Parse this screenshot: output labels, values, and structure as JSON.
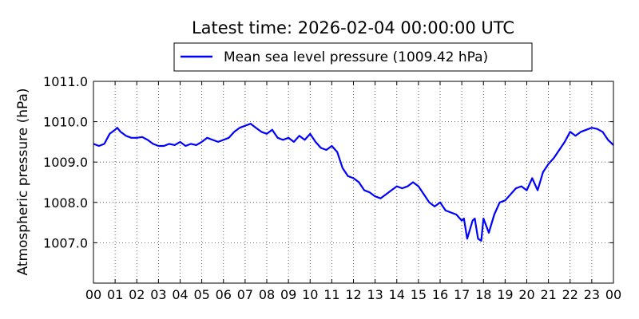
{
  "chart_data": {
    "type": "line",
    "title": "Latest time: 2026-02-04 00:00:00 UTC",
    "xlabel": "",
    "ylabel": "Atmospheric pressure (hPa)",
    "xlim": [
      0,
      24
    ],
    "ylim": [
      1006.0,
      1011.0
    ],
    "grid": true,
    "legend_position": "top-center",
    "x_tick_labels": [
      "00",
      "01",
      "02",
      "03",
      "04",
      "05",
      "06",
      "07",
      "08",
      "09",
      "10",
      "11",
      "12",
      "13",
      "14",
      "15",
      "16",
      "17",
      "18",
      "19",
      "20",
      "21",
      "22",
      "23",
      "00"
    ],
    "y_tick_labels": [
      "1011.0",
      "1010.0",
      "1009.0",
      "1008.0",
      "1007.0"
    ],
    "series": [
      {
        "name": "Mean sea level pressure (1009.42 hPa)",
        "color": "#0000ff",
        "x": [
          0.0,
          0.25,
          0.5,
          0.75,
          1.0,
          1.1,
          1.25,
          1.5,
          1.75,
          2.0,
          2.25,
          2.5,
          2.75,
          3.0,
          3.25,
          3.5,
          3.75,
          4.0,
          4.25,
          4.5,
          4.75,
          5.0,
          5.25,
          5.5,
          5.75,
          6.0,
          6.25,
          6.5,
          6.75,
          7.0,
          7.25,
          7.5,
          7.75,
          8.0,
          8.25,
          8.5,
          8.75,
          9.0,
          9.25,
          9.5,
          9.75,
          10.0,
          10.25,
          10.5,
          10.75,
          11.0,
          11.25,
          11.5,
          11.75,
          12.0,
          12.25,
          12.5,
          12.75,
          13.0,
          13.25,
          13.5,
          13.75,
          14.0,
          14.25,
          14.5,
          14.75,
          15.0,
          15.25,
          15.5,
          15.75,
          16.0,
          16.25,
          16.5,
          16.75,
          17.0,
          17.1,
          17.25,
          17.5,
          17.6,
          17.75,
          17.9,
          18.0,
          18.25,
          18.5,
          18.75,
          19.0,
          19.25,
          19.5,
          19.75,
          20.0,
          20.25,
          20.5,
          20.75,
          21.0,
          21.25,
          21.5,
          21.75,
          22.0,
          22.25,
          22.5,
          22.75,
          23.0,
          23.25,
          23.5,
          23.75,
          24.0
        ],
        "y": [
          1009.45,
          1009.4,
          1009.45,
          1009.7,
          1009.8,
          1009.85,
          1009.75,
          1009.65,
          1009.6,
          1009.6,
          1009.62,
          1009.55,
          1009.45,
          1009.4,
          1009.4,
          1009.45,
          1009.42,
          1009.5,
          1009.4,
          1009.45,
          1009.42,
          1009.5,
          1009.6,
          1009.55,
          1009.5,
          1009.55,
          1009.6,
          1009.75,
          1009.85,
          1009.9,
          1009.95,
          1009.85,
          1009.75,
          1009.7,
          1009.8,
          1009.6,
          1009.55,
          1009.6,
          1009.5,
          1009.65,
          1009.55,
          1009.7,
          1009.5,
          1009.35,
          1009.3,
          1009.4,
          1009.25,
          1008.85,
          1008.65,
          1008.6,
          1008.5,
          1008.3,
          1008.25,
          1008.15,
          1008.1,
          1008.2,
          1008.3,
          1008.4,
          1008.35,
          1008.4,
          1008.5,
          1008.4,
          1008.2,
          1008.0,
          1007.9,
          1008.0,
          1007.8,
          1007.75,
          1007.7,
          1007.55,
          1007.6,
          1007.1,
          1007.55,
          1007.6,
          1007.1,
          1007.05,
          1007.6,
          1007.25,
          1007.7,
          1008.0,
          1008.05,
          1008.2,
          1008.35,
          1008.4,
          1008.3,
          1008.6,
          1008.3,
          1008.75,
          1008.95,
          1009.1,
          1009.3,
          1009.5,
          1009.75,
          1009.65,
          1009.75,
          1009.8,
          1009.85,
          1009.82,
          1009.75,
          1009.55,
          1009.42
        ]
      }
    ]
  }
}
